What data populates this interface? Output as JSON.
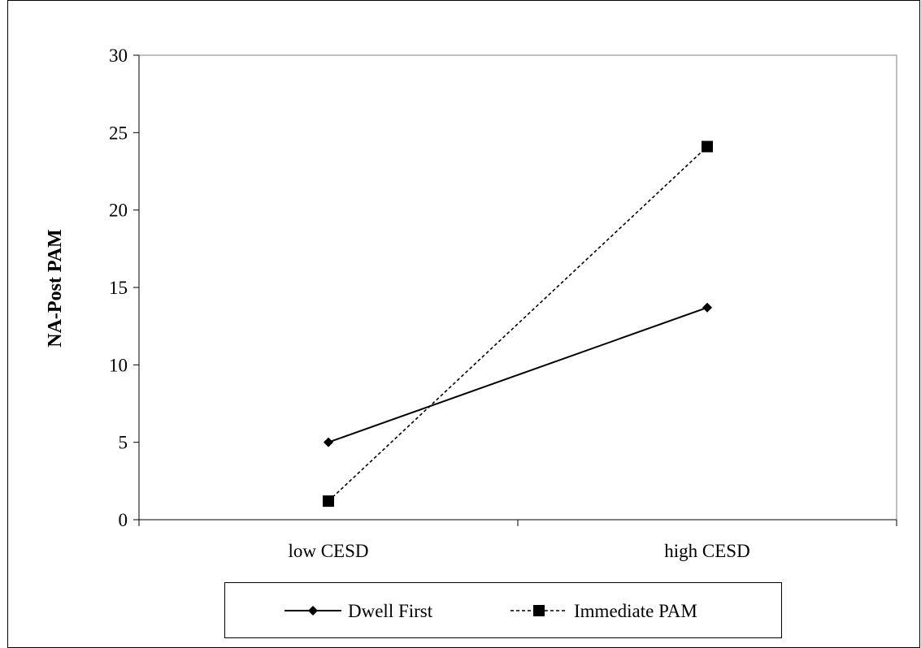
{
  "chart_data": {
    "type": "line",
    "categories": [
      "low CESD",
      "high CESD"
    ],
    "series": [
      {
        "name": "Dwell First",
        "values": [
          5.0,
          13.7
        ],
        "marker": "diamond",
        "dash": "solid",
        "color": "#000000"
      },
      {
        "name": "Immediate PAM",
        "values": [
          1.2,
          24.1
        ],
        "marker": "square",
        "dash": "dashed",
        "color": "#000000"
      }
    ],
    "title": "",
    "xlabel": "",
    "ylabel": "NA-Post  PAM",
    "ylim": [
      0,
      30
    ],
    "yticks": [
      0,
      5,
      10,
      15,
      20,
      25,
      30
    ],
    "grid": false,
    "legend_position": "bottom"
  }
}
